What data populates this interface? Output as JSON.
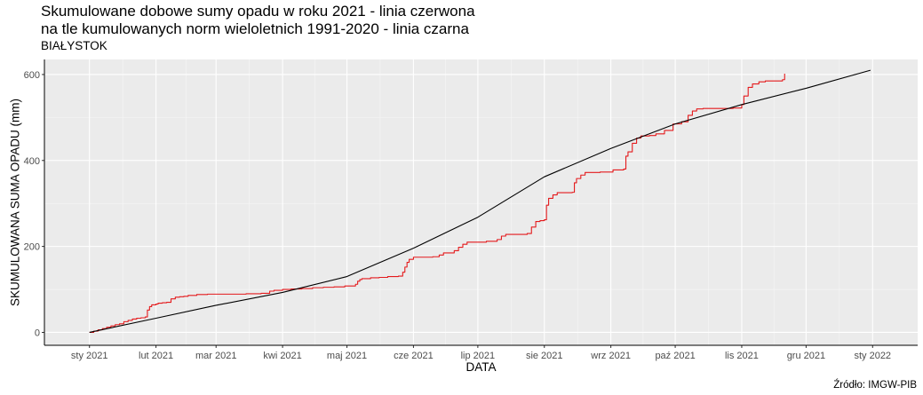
{
  "chart_data": {
    "type": "line",
    "title_line1": "Skumulowane dobowe sumy opadu w roku 2021 - linia czerwona",
    "title_line2": "na tle kumulowanych norm wieloletnich 1991-2020 - linia czarna",
    "subtitle": "BIAŁYSTOK",
    "caption": "Źródło: IMGW-PIB",
    "xlabel": "DATA",
    "ylabel": "SKUMULOWANA SUMA OPADU (mm)",
    "xlim": [
      "2020-12-11",
      "2022-01-22"
    ],
    "ylim": [
      -30,
      635
    ],
    "y_ticks": [
      0,
      200,
      400,
      600
    ],
    "x_ticks": [
      {
        "date": "2021-01-01",
        "label": "sty 2021"
      },
      {
        "date": "2021-02-01",
        "label": "lut 2021"
      },
      {
        "date": "2021-03-01",
        "label": "mar 2021"
      },
      {
        "date": "2021-04-01",
        "label": "kwi 2021"
      },
      {
        "date": "2021-05-01",
        "label": "maj 2021"
      },
      {
        "date": "2021-06-01",
        "label": "cze 2021"
      },
      {
        "date": "2021-07-01",
        "label": "lip 2021"
      },
      {
        "date": "2021-08-01",
        "label": "sie 2021"
      },
      {
        "date": "2021-09-01",
        "label": "wrz 2021"
      },
      {
        "date": "2021-10-01",
        "label": "paź 2021"
      },
      {
        "date": "2021-11-01",
        "label": "lis 2021"
      },
      {
        "date": "2021-12-01",
        "label": "gru 2021"
      },
      {
        "date": "2022-01-01",
        "label": "sty 2022"
      }
    ],
    "grid": true,
    "series": [
      {
        "color": "#e41a1c",
        "step": true,
        "points": [
          [
            "2021-01-01",
            0
          ],
          [
            "2021-01-03",
            3
          ],
          [
            "2021-01-05",
            6
          ],
          [
            "2021-01-07",
            9
          ],
          [
            "2021-01-09",
            12
          ],
          [
            "2021-01-11",
            15
          ],
          [
            "2021-01-13",
            18
          ],
          [
            "2021-01-15",
            20
          ],
          [
            "2021-01-17",
            25
          ],
          [
            "2021-01-19",
            28
          ],
          [
            "2021-01-21",
            31
          ],
          [
            "2021-01-23",
            33
          ],
          [
            "2021-01-25",
            34
          ],
          [
            "2021-01-27",
            36
          ],
          [
            "2021-01-28",
            52
          ],
          [
            "2021-01-29",
            60
          ],
          [
            "2021-01-30",
            64
          ],
          [
            "2021-02-01",
            66
          ],
          [
            "2021-02-02",
            68
          ],
          [
            "2021-02-04",
            69
          ],
          [
            "2021-02-06",
            70
          ],
          [
            "2021-02-08",
            78
          ],
          [
            "2021-02-10",
            82
          ],
          [
            "2021-02-12",
            83
          ],
          [
            "2021-02-14",
            84
          ],
          [
            "2021-02-16",
            86
          ],
          [
            "2021-02-20",
            88
          ],
          [
            "2021-02-25",
            89
          ],
          [
            "2021-03-05",
            89
          ],
          [
            "2021-03-15",
            90
          ],
          [
            "2021-03-22",
            91
          ],
          [
            "2021-03-26",
            96
          ],
          [
            "2021-03-28",
            98
          ],
          [
            "2021-04-01",
            100
          ],
          [
            "2021-04-05",
            101
          ],
          [
            "2021-04-10",
            102
          ],
          [
            "2021-04-15",
            104
          ],
          [
            "2021-04-20",
            105
          ],
          [
            "2021-04-25",
            106
          ],
          [
            "2021-04-30",
            108
          ],
          [
            "2021-05-05",
            112
          ],
          [
            "2021-05-06",
            119
          ],
          [
            "2021-05-07",
            123
          ],
          [
            "2021-05-08",
            125
          ],
          [
            "2021-05-12",
            127
          ],
          [
            "2021-05-16",
            128
          ],
          [
            "2021-05-20",
            130
          ],
          [
            "2021-05-25",
            131
          ],
          [
            "2021-05-27",
            140
          ],
          [
            "2021-05-28",
            152
          ],
          [
            "2021-05-29",
            163
          ],
          [
            "2021-05-30",
            170
          ],
          [
            "2021-06-01",
            175
          ],
          [
            "2021-06-10",
            176
          ],
          [
            "2021-06-13",
            180
          ],
          [
            "2021-06-15",
            185
          ],
          [
            "2021-06-20",
            190
          ],
          [
            "2021-06-22",
            198
          ],
          [
            "2021-06-24",
            205
          ],
          [
            "2021-06-26",
            210
          ],
          [
            "2021-07-05",
            212
          ],
          [
            "2021-07-10",
            216
          ],
          [
            "2021-07-12",
            224
          ],
          [
            "2021-07-14",
            228
          ],
          [
            "2021-07-24",
            230
          ],
          [
            "2021-07-26",
            245
          ],
          [
            "2021-07-28",
            258
          ],
          [
            "2021-07-30",
            260
          ],
          [
            "2021-08-01",
            262
          ],
          [
            "2021-08-02",
            296
          ],
          [
            "2021-08-03",
            312
          ],
          [
            "2021-08-05",
            320
          ],
          [
            "2021-08-07",
            325
          ],
          [
            "2021-08-14",
            326
          ],
          [
            "2021-08-15",
            348
          ],
          [
            "2021-08-16",
            358
          ],
          [
            "2021-08-18",
            366
          ],
          [
            "2021-08-20",
            372
          ],
          [
            "2021-08-27",
            373
          ],
          [
            "2021-09-02",
            378
          ],
          [
            "2021-09-07",
            380
          ],
          [
            "2021-09-08",
            410
          ],
          [
            "2021-09-09",
            420
          ],
          [
            "2021-09-11",
            440
          ],
          [
            "2021-09-13",
            452
          ],
          [
            "2021-09-15",
            457
          ],
          [
            "2021-09-19",
            458
          ],
          [
            "2021-09-22",
            462
          ],
          [
            "2021-09-26",
            470
          ],
          [
            "2021-09-30",
            485
          ],
          [
            "2021-10-04",
            490
          ],
          [
            "2021-10-07",
            505
          ],
          [
            "2021-10-09",
            515
          ],
          [
            "2021-10-11",
            520
          ],
          [
            "2021-10-14",
            521
          ],
          [
            "2021-10-28",
            522
          ],
          [
            "2021-11-01",
            530
          ],
          [
            "2021-11-02",
            550
          ],
          [
            "2021-11-04",
            570
          ],
          [
            "2021-11-06",
            578
          ],
          [
            "2021-11-09",
            583
          ],
          [
            "2021-11-12",
            585
          ],
          [
            "2021-11-20",
            588
          ],
          [
            "2021-11-21",
            602
          ]
        ]
      },
      {
        "color": "#000000",
        "step": false,
        "points": [
          [
            "2021-01-01",
            0
          ],
          [
            "2021-02-01",
            33
          ],
          [
            "2021-03-01",
            63
          ],
          [
            "2021-04-01",
            93
          ],
          [
            "2021-05-01",
            130
          ],
          [
            "2021-06-01",
            196
          ],
          [
            "2021-07-01",
            268
          ],
          [
            "2021-08-01",
            362
          ],
          [
            "2021-09-01",
            428
          ],
          [
            "2021-10-01",
            485
          ],
          [
            "2021-11-01",
            530
          ],
          [
            "2021-12-01",
            568
          ],
          [
            "2021-12-31",
            610
          ]
        ]
      }
    ]
  }
}
